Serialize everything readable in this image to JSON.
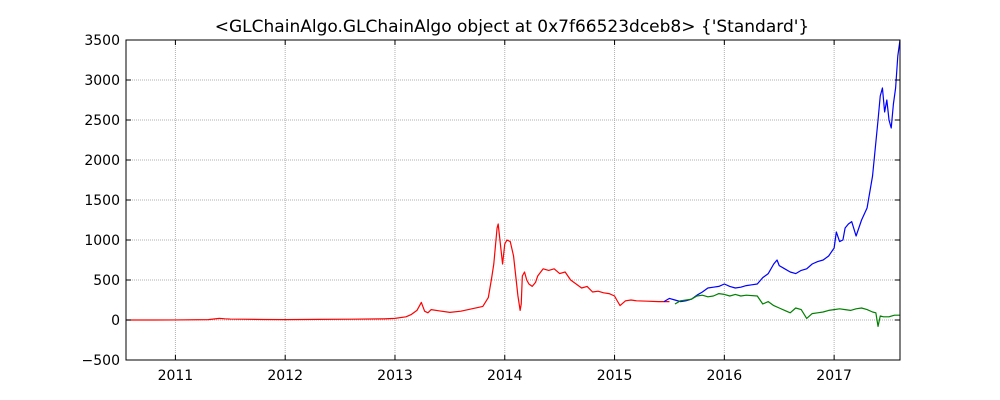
{
  "chart_data": {
    "type": "line",
    "title": "<GLChainAlgo.GLChainAlgo object at 0x7f66523dceb8> {'Standard'}",
    "xlabel": "",
    "ylabel": "",
    "xlim": [
      2010.55,
      2017.6
    ],
    "ylim": [
      -500,
      3500
    ],
    "grid": true,
    "x_ticks": [
      2011,
      2012,
      2013,
      2014,
      2015,
      2016,
      2017
    ],
    "x_tick_labels": [
      "2011",
      "2012",
      "2013",
      "2014",
      "2015",
      "2016",
      "2017"
    ],
    "y_ticks": [
      -500,
      0,
      500,
      1000,
      1500,
      2000,
      2500,
      3000,
      3500
    ],
    "y_tick_labels": [
      "−500",
      "0",
      "500",
      "1000",
      "1500",
      "2000",
      "2500",
      "3000",
      "3500"
    ],
    "series": [
      {
        "color": "#ff0000",
        "x": [
          2010.55,
          2010.8,
          2011.0,
          2011.3,
          2011.4,
          2011.45,
          2011.5,
          2011.6,
          2011.8,
          2012.0,
          2012.3,
          2012.6,
          2012.9,
          2013.0,
          2013.1,
          2013.15,
          2013.2,
          2013.24,
          2013.27,
          2013.3,
          2013.33,
          2013.4,
          2013.5,
          2013.6,
          2013.7,
          2013.8,
          2013.85,
          2013.88,
          2013.9,
          2013.92,
          2013.93,
          2013.94,
          2013.96,
          2013.98,
          2014.0,
          2014.02,
          2014.05,
          2014.08,
          2014.1,
          2014.12,
          2014.14,
          2014.15,
          2014.16,
          2014.18,
          2014.2,
          2014.22,
          2014.25,
          2014.28,
          2014.3,
          2014.35,
          2014.4,
          2014.45,
          2014.5,
          2014.55,
          2014.6,
          2014.65,
          2014.7,
          2014.75,
          2014.8,
          2014.85,
          2014.9,
          2014.95,
          2015.0,
          2015.02,
          2015.05,
          2015.1,
          2015.15,
          2015.2,
          2015.3,
          2015.4,
          2015.5
        ],
        "y": [
          0,
          0,
          1,
          5,
          20,
          15,
          12,
          10,
          6,
          5,
          8,
          10,
          14,
          20,
          40,
          70,
          120,
          220,
          110,
          90,
          130,
          115,
          95,
          110,
          140,
          170,
          280,
          520,
          700,
          1000,
          1150,
          1200,
          950,
          700,
          950,
          1000,
          980,
          800,
          550,
          300,
          120,
          200,
          550,
          600,
          500,
          450,
          420,
          470,
          550,
          640,
          620,
          640,
          580,
          600,
          500,
          450,
          400,
          420,
          350,
          360,
          340,
          330,
          300,
          250,
          180,
          240,
          250,
          240,
          235,
          230,
          230
        ]
      },
      {
        "color": "#0000ff",
        "x": [
          2015.45,
          2015.5,
          2015.55,
          2015.6,
          2015.65,
          2015.7,
          2015.75,
          2015.8,
          2015.85,
          2015.9,
          2015.95,
          2016.0,
          2016.05,
          2016.1,
          2016.15,
          2016.2,
          2016.25,
          2016.3,
          2016.35,
          2016.4,
          2016.45,
          2016.48,
          2016.5,
          2016.55,
          2016.6,
          2016.65,
          2016.7,
          2016.75,
          2016.8,
          2016.85,
          2016.9,
          2016.95,
          2017.0,
          2017.02,
          2017.05,
          2017.08,
          2017.1,
          2017.13,
          2017.16,
          2017.2,
          2017.25,
          2017.3,
          2017.35,
          2017.4,
          2017.42,
          2017.44,
          2017.46,
          2017.48,
          2017.5,
          2017.52,
          2017.54,
          2017.56,
          2017.58,
          2017.6
        ],
        "y": [
          230,
          270,
          250,
          230,
          240,
          260,
          310,
          350,
          400,
          410,
          420,
          450,
          420,
          400,
          410,
          430,
          440,
          450,
          530,
          580,
          700,
          750,
          680,
          640,
          600,
          580,
          620,
          640,
          700,
          730,
          750,
          800,
          900,
          1100,
          980,
          1000,
          1150,
          1200,
          1230,
          1050,
          1250,
          1400,
          1800,
          2500,
          2800,
          2900,
          2600,
          2750,
          2500,
          2400,
          2700,
          2900,
          3300,
          3500
        ]
      },
      {
        "color": "#008000",
        "x": [
          2015.55,
          2015.6,
          2015.7,
          2015.75,
          2015.8,
          2015.85,
          2015.9,
          2015.95,
          2016.0,
          2016.05,
          2016.1,
          2016.15,
          2016.2,
          2016.3,
          2016.35,
          2016.4,
          2016.45,
          2016.5,
          2016.55,
          2016.6,
          2016.65,
          2016.7,
          2016.75,
          2016.8,
          2016.85,
          2016.9,
          2016.95,
          2017.0,
          2017.05,
          2017.1,
          2017.15,
          2017.2,
          2017.25,
          2017.3,
          2017.35,
          2017.38,
          2017.4,
          2017.42,
          2017.45,
          2017.5,
          2017.55,
          2017.6
        ],
        "y": [
          200,
          240,
          260,
          300,
          310,
          290,
          300,
          330,
          320,
          300,
          320,
          300,
          310,
          300,
          200,
          230,
          180,
          150,
          120,
          90,
          150,
          130,
          20,
          80,
          90,
          100,
          120,
          130,
          140,
          130,
          120,
          140,
          150,
          130,
          100,
          90,
          -80,
          50,
          40,
          40,
          60,
          60
        ]
      }
    ]
  }
}
